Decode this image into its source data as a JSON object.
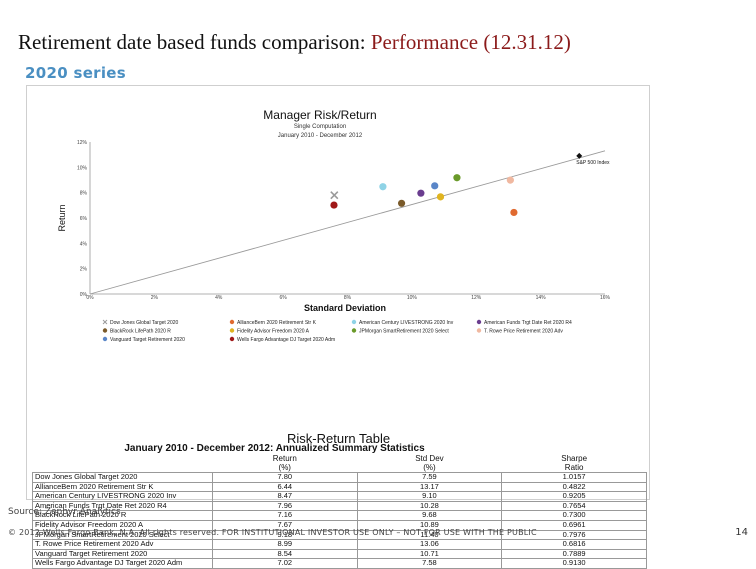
{
  "slide": {
    "title_main": "Retirement date based funds comparison: ",
    "title_accent": "Performance (12.31.12)",
    "subtitle": "2020 series",
    "source": "Source: Zephyr Analytics",
    "footer": "© 2012 Wells Fargo Bank, N.A. All rights reserved. FOR INSTITUTIONAL INVESTOR USE ONLY – NOT FOR USE WITH THE PUBLIC",
    "page_number": "14"
  },
  "chart_data": {
    "type": "scatter",
    "title": "Manager Risk/Return",
    "subtitle": "Single Computation",
    "period": "January 2010 - December 2012",
    "xlabel": "Standard Deviation",
    "ylabel": "Return",
    "xlim": [
      0,
      16
    ],
    "ylim": [
      0,
      12
    ],
    "x_ticks": [
      "0%",
      "2%",
      "4%",
      "6%",
      "8%",
      "10%",
      "12%",
      "14%",
      "16%"
    ],
    "y_ticks": [
      "0%",
      "2%",
      "4%",
      "6%",
      "8%",
      "10%",
      "12%"
    ],
    "grid": false,
    "trendline": {
      "x": [
        0,
        16
      ],
      "y": [
        0.0,
        11.3
      ]
    },
    "point_label": "S&P 500 Index",
    "series": [
      {
        "name": "Dow Jones Global Target 2020",
        "x": 7.59,
        "y": 7.8,
        "color": "#9a9a9a",
        "marker": "x"
      },
      {
        "name": "AllianceBern 2020 Retirement Str K",
        "x": 13.17,
        "y": 6.44,
        "color": "#e06a30",
        "marker": "circle"
      },
      {
        "name": "American Century LIVESTRONG 2020 Inv",
        "x": 9.1,
        "y": 8.47,
        "color": "#8fd3e6",
        "marker": "circle"
      },
      {
        "name": "American Funds Trgt Date Ret 2020 R4",
        "x": 10.28,
        "y": 7.96,
        "color": "#6a3d8f",
        "marker": "circle"
      },
      {
        "name": "BlackRock LifePath 2020 R",
        "x": 9.68,
        "y": 7.16,
        "color": "#7a5a2a",
        "marker": "circle"
      },
      {
        "name": "Fidelity Advisor Freedom 2020 A",
        "x": 10.89,
        "y": 7.67,
        "color": "#e0b420",
        "marker": "circle"
      },
      {
        "name": "JPMorgan SmartRetirement 2020 Select",
        "x": 11.4,
        "y": 9.18,
        "color": "#6a9a2a",
        "marker": "circle"
      },
      {
        "name": "T. Rowe Price Retirement 2020 Adv",
        "x": 13.06,
        "y": 8.99,
        "color": "#f0b8a0",
        "marker": "circle"
      },
      {
        "name": "Vanguard Target Retirement 2020",
        "x": 10.71,
        "y": 8.54,
        "color": "#5a86c8",
        "marker": "circle"
      },
      {
        "name": "Wells Fargo Advantage DJ Target 2020 Adm",
        "x": 7.58,
        "y": 7.02,
        "color": "#a01818",
        "marker": "circle"
      },
      {
        "name": "S&P 500 Index",
        "x": 15.2,
        "y": 10.9,
        "color": "#111111",
        "marker": "diamond"
      }
    ],
    "legend": [
      {
        "label": "Dow Jones Global Target 2020",
        "color": "#9a9a9a",
        "marker": "x"
      },
      {
        "label": "AllianceBern 2020 Retirement Str K",
        "color": "#e06a30",
        "marker": "circle"
      },
      {
        "label": "American Century LIVESTRONG 2020 Inv",
        "color": "#8fd3e6",
        "marker": "circle"
      },
      {
        "label": "American Funds Trgt Date Ret 2020 R4",
        "color": "#6a3d8f",
        "marker": "circle"
      },
      {
        "label": "BlackRock LifePath 2020 R",
        "color": "#7a5a2a",
        "marker": "circle"
      },
      {
        "label": "Fidelity Advisor Freedom 2020 A",
        "color": "#e0b420",
        "marker": "circle"
      },
      {
        "label": "JPMorgan SmartRetirement 2020 Select",
        "color": "#6a9a2a",
        "marker": "circle"
      },
      {
        "label": "T. Rowe Price Retirement 2020 Adv",
        "color": "#f0b8a0",
        "marker": "circle"
      },
      {
        "label": "Vanguard Target Retirement 2020",
        "color": "#5a86c8",
        "marker": "circle"
      },
      {
        "label": "Wells Fargo Advantage DJ Target 2020 Adm",
        "color": "#a01818",
        "marker": "circle"
      }
    ]
  },
  "table": {
    "title": "Risk-Return Table",
    "heading": "January 2010 - December 2012:  Annualized Summary Statistics",
    "columns": [
      {
        "line1": "Return",
        "line2": "(%)"
      },
      {
        "line1": "Std Dev",
        "line2": "(%)"
      },
      {
        "line1": "Sharpe",
        "line2": "Ratio"
      }
    ],
    "rows": [
      {
        "name": "Dow Jones Global Target 2020",
        "ret": "7.80",
        "sd": "7.59",
        "sharpe": "1.0157"
      },
      {
        "name": "AllianceBern 2020 Retirement Str K",
        "ret": "6.44",
        "sd": "13.17",
        "sharpe": "0.4822"
      },
      {
        "name": "American Century LIVESTRONG 2020 Inv",
        "ret": "8.47",
        "sd": "9.10",
        "sharpe": "0.9205"
      },
      {
        "name": "American Funds Trgt Date Ret 2020 R4",
        "ret": "7.96",
        "sd": "10.28",
        "sharpe": "0.7654"
      },
      {
        "name": "BlackRock LifePath 2020 R",
        "ret": "7.16",
        "sd": "9.68",
        "sharpe": "0.7300"
      },
      {
        "name": "Fidelity Advisor Freedom 2020 A",
        "ret": "7.67",
        "sd": "10.89",
        "sharpe": "0.6961"
      },
      {
        "name": "JPMorgan SmartRetirement 2020 Select",
        "ret": "9.18",
        "sd": "11.40",
        "sharpe": "0.7976"
      },
      {
        "name": "T. Rowe Price Retirement 2020 Adv",
        "ret": "8.99",
        "sd": "13.06",
        "sharpe": "0.6816"
      },
      {
        "name": "Vanguard Target Retirement 2020",
        "ret": "8.54",
        "sd": "10.71",
        "sharpe": "0.7889"
      },
      {
        "name": "Wells Fargo Advantage DJ Target 2020 Adm",
        "ret": "7.02",
        "sd": "7.58",
        "sharpe": "0.9130"
      }
    ]
  }
}
